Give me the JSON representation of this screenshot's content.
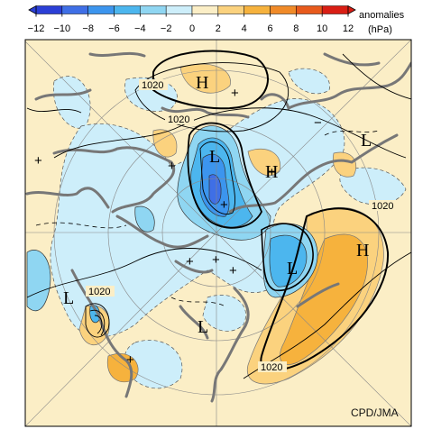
{
  "colorbar": {
    "title_line1": "anomalies",
    "title_line2": "(hPa)",
    "ticks": [
      "−12",
      "−10",
      "−8",
      "−6",
      "−4",
      "−2",
      "0",
      "2",
      "4",
      "6",
      "8",
      "10",
      "12"
    ],
    "colors": [
      "#2b3fd6",
      "#3f6fe6",
      "#3c95ee",
      "#4cb6ee",
      "#8fd6f2",
      "#cdeefa",
      "#fbeec6",
      "#fbd27e",
      "#f6b23d",
      "#f08a28",
      "#e85a1c",
      "#d91e14"
    ]
  },
  "map": {
    "contour_labels": [
      "1020",
      "1020",
      "1020",
      "1020",
      "1020"
    ],
    "centers": [
      "H",
      "L",
      "H",
      "L",
      "L",
      "H",
      "L",
      "L"
    ],
    "signs": [
      "+",
      "+",
      "+",
      "+",
      "+",
      "+",
      "+",
      "+",
      "+",
      "−"
    ],
    "credit": "CPD/JMA"
  }
}
